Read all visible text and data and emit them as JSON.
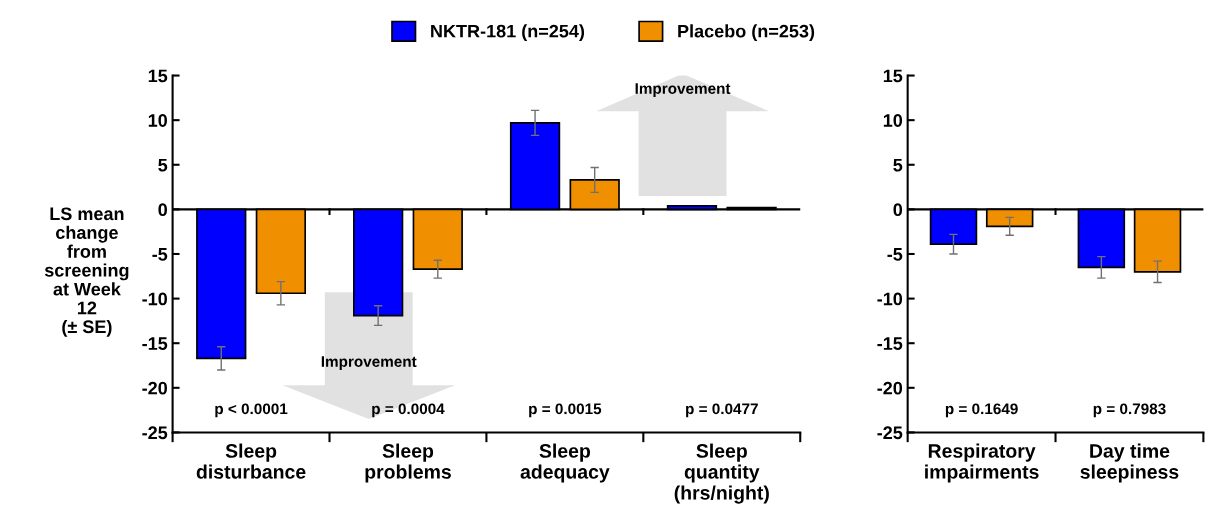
{
  "chart_data": [
    {
      "type": "bar",
      "ylabel": "LS mean\nchange\nfrom\nscreening\nat Week\n12\n(± SE)",
      "categories": [
        "Sleep\ndisturbance",
        "Sleep\nproblems",
        "Sleep\nadequacy",
        "Sleep\nquantity\n(hrs/night)"
      ],
      "series": [
        {
          "name": "NKTR-181 (n=254)",
          "color": "#0000ff",
          "values": [
            -16.7,
            -11.9,
            9.7,
            0.4
          ],
          "errors": [
            1.3,
            1.1,
            1.4,
            null
          ]
        },
        {
          "name": "Placebo (n=253)",
          "color": "#f09000",
          "values": [
            -9.4,
            -6.7,
            3.3,
            0.2
          ],
          "errors": [
            1.3,
            1.0,
            1.4,
            null
          ]
        }
      ],
      "ylim": [
        -25,
        15
      ],
      "yticks": [
        -25,
        -20,
        -15,
        -10,
        -5,
        0,
        5,
        10,
        15
      ],
      "legend": "top",
      "grid": false,
      "ref_lines": [
        {
          "axis": "y",
          "value": 0
        }
      ],
      "annotations": [
        "p < 0.0001",
        "p = 0.0004",
        "p = 0.0015",
        "p = 0.0477",
        "Improvement",
        "Improvement"
      ]
    },
    {
      "type": "bar",
      "categories": [
        "Respiratory\nimpairments",
        "Day time\nsleepiness"
      ],
      "series": [
        {
          "color": "#0000ff",
          "values": [
            -3.9,
            -6.5
          ],
          "errors": [
            1.1,
            1.2
          ]
        },
        {
          "color": "#f09000",
          "values": [
            -1.9,
            -7.0
          ],
          "errors": [
            1.0,
            1.2
          ]
        }
      ],
      "ylim": [
        -25,
        15
      ],
      "yticks": [
        -25,
        -20,
        -15,
        -10,
        -5,
        0,
        5,
        10,
        15
      ],
      "grid": false,
      "ref_lines": [
        {
          "axis": "y",
          "value": 0
        }
      ],
      "annotations": [
        "p = 0.1649",
        "p = 0.7983"
      ]
    }
  ]
}
